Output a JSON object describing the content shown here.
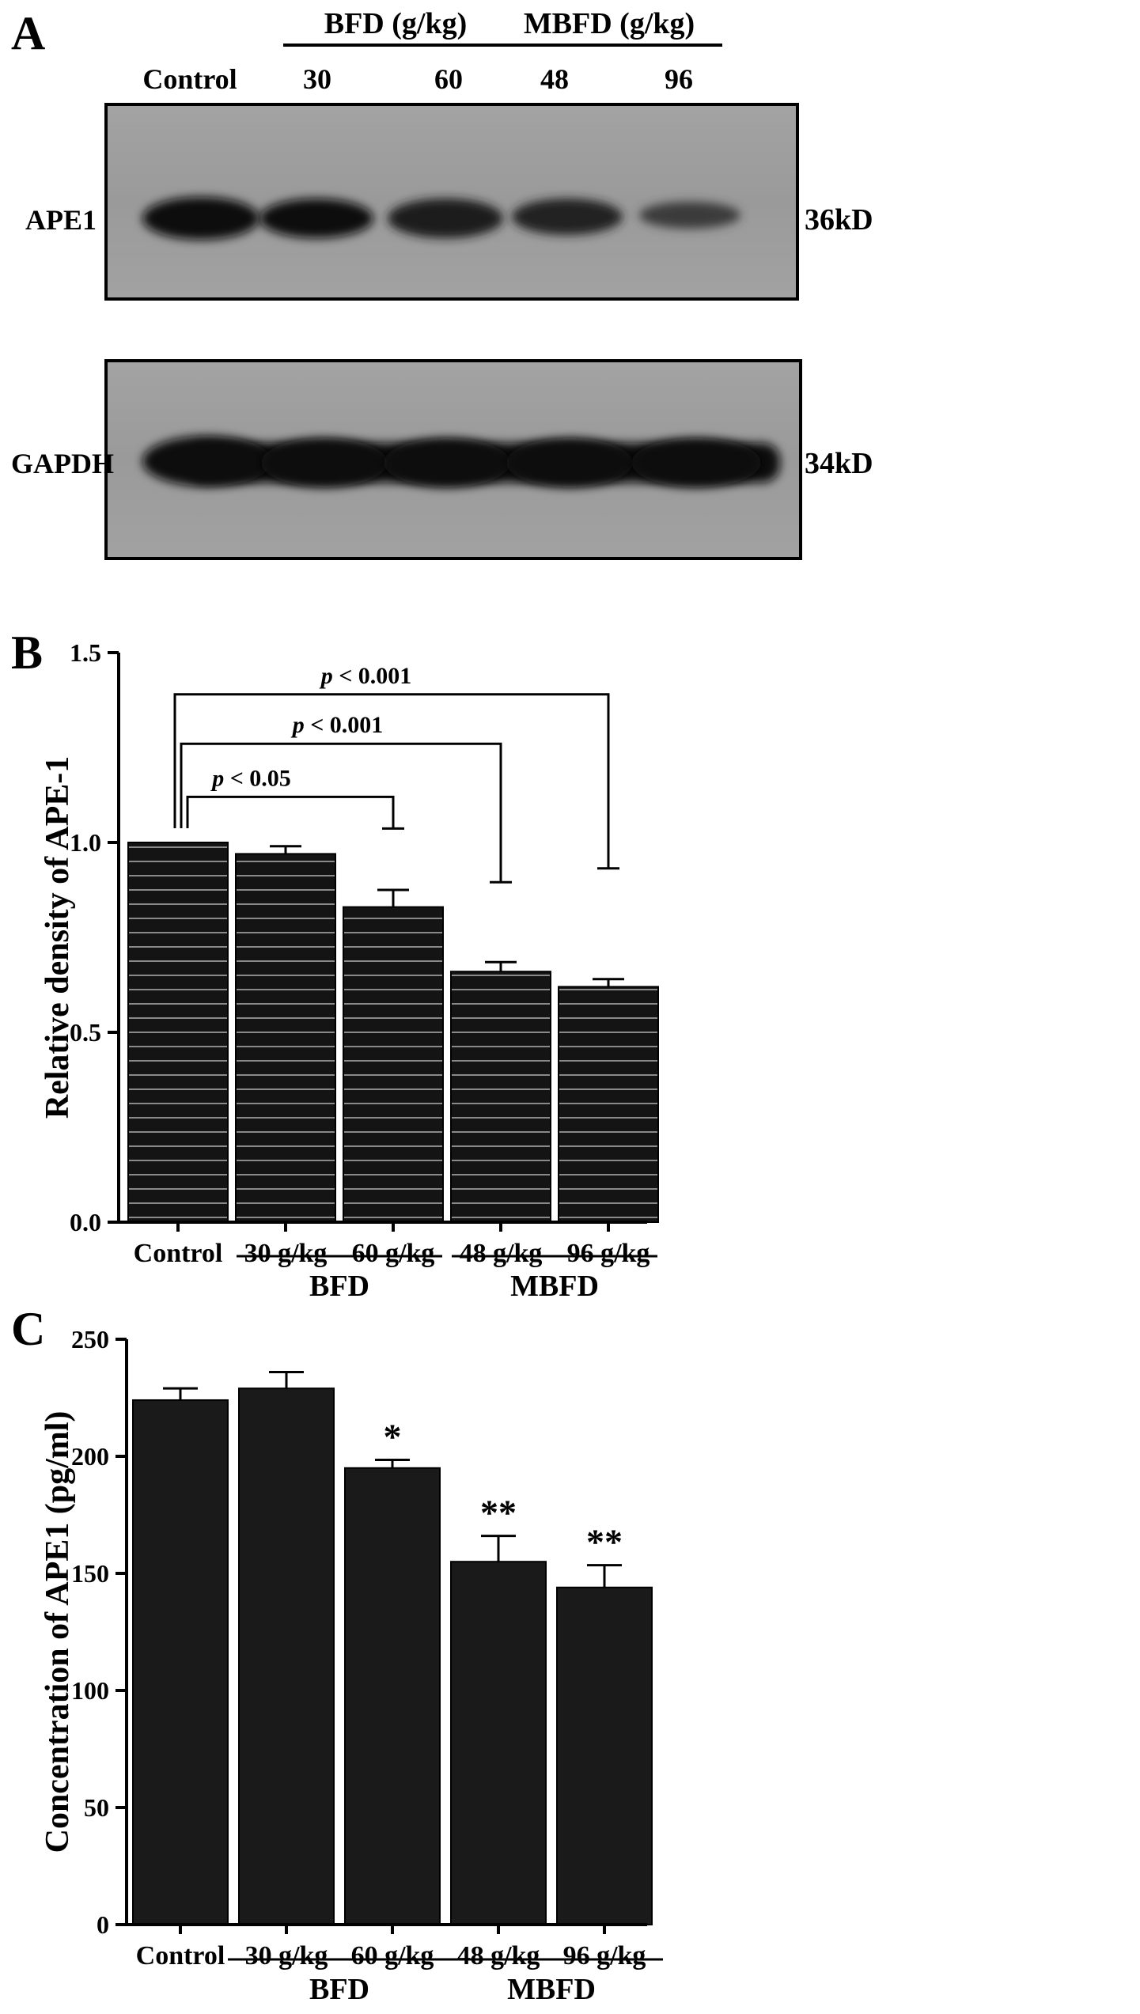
{
  "panels": {
    "a": {
      "letter": "A",
      "group_bfd": "BFD (g/kg)",
      "group_mbfd": "MBFD (g/kg)",
      "lanes": [
        "Control",
        "30",
        "60",
        "48",
        "96"
      ],
      "blots": [
        {
          "protein": "APE1",
          "size": "36kD",
          "band_intensity": [
            1.0,
            0.95,
            0.86,
            0.8,
            0.62
          ]
        },
        {
          "protein": "GAPDH",
          "size": "34kD",
          "band_intensity": [
            1.0,
            1.0,
            1.0,
            1.0,
            1.0
          ]
        }
      ]
    },
    "b": {
      "letter": "B"
    },
    "c": {
      "letter": "C"
    }
  },
  "chart_data": [
    {
      "type": "bar",
      "panel": "B",
      "categories": [
        "Control",
        "30 g/kg",
        "60  g/kg",
        "48 g/kg",
        "96 g/kg"
      ],
      "values": [
        1.0,
        0.97,
        0.83,
        0.66,
        0.62
      ],
      "errors": [
        0.0,
        0.02,
        0.045,
        0.025,
        0.02
      ],
      "xlabel": "",
      "ylabel": "Relative density of APE-1",
      "ylim": [
        0,
        1.5
      ],
      "yticks": [
        "0.0",
        "0.5",
        "1.0",
        "1.5"
      ],
      "ytick_values": [
        0,
        0.5,
        1.0,
        1.5
      ],
      "bar_fill": "striped",
      "groups": [
        {
          "label": "BFD",
          "categories": [
            "30 g/kg",
            "60  g/kg"
          ]
        },
        {
          "label": "MBFD",
          "categories": [
            "48 g/kg",
            "96 g/kg"
          ]
        }
      ],
      "comparisons": [
        {
          "from": "Control",
          "to": "60  g/kg",
          "label": "p < 0.05",
          "level": 1.12
        },
        {
          "from": "Control",
          "to": "48 g/kg",
          "label": "p < 0.001",
          "level": 1.26
        },
        {
          "from": "Control",
          "to": "96 g/kg",
          "label": "p < 0.001",
          "level": 1.39
        }
      ],
      "grid": false,
      "legend": "none"
    },
    {
      "type": "bar",
      "panel": "C",
      "categories": [
        "Control",
        "30 g/kg",
        "60 g/kg",
        "48 g/kg",
        "96 g/kg"
      ],
      "values": [
        224,
        229,
        195,
        155,
        144
      ],
      "errors": [
        5,
        7,
        3.5,
        11,
        9.5
      ],
      "annotations": [
        "",
        "",
        "*",
        "**",
        "**"
      ],
      "xlabel": "",
      "ylabel": "Concentration of APE1 (pg/ml)",
      "ylim": [
        0,
        250
      ],
      "yticks": [
        "0",
        "50",
        "100",
        "150",
        "200",
        "250"
      ],
      "ytick_values": [
        0,
        50,
        100,
        150,
        200,
        250
      ],
      "bar_fill": "solid",
      "groups": [
        {
          "label": "BFD",
          "categories": [
            "30 g/kg",
            "60 g/kg"
          ]
        },
        {
          "label": "MBFD",
          "categories": [
            "48 g/kg",
            "96 g/kg"
          ]
        }
      ],
      "grid": false,
      "legend": "none"
    }
  ]
}
